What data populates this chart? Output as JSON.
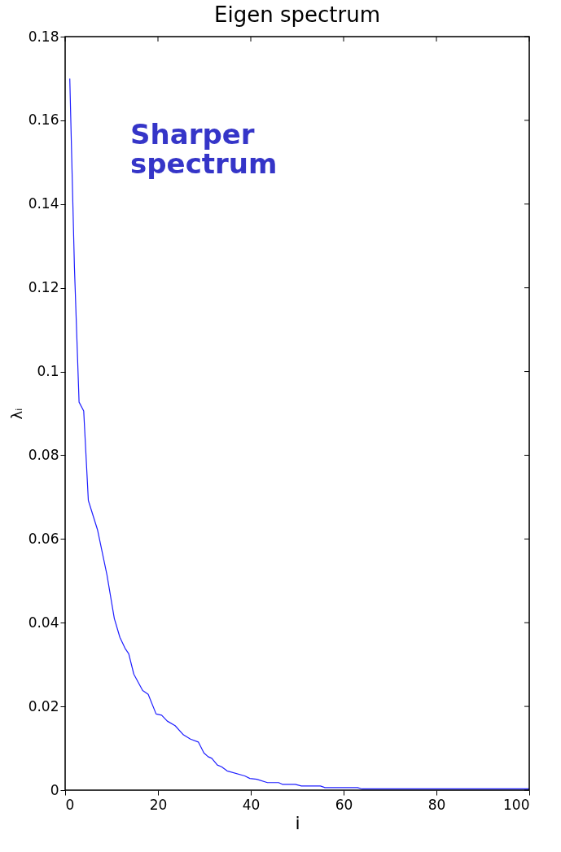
{
  "chart_data": {
    "type": "line",
    "title": "Eigen spectrum",
    "xlabel": "i",
    "ylabel": "λᵢ",
    "annotations": [
      "Sharper spectrum"
    ],
    "x": [
      1,
      2,
      3,
      4,
      5,
      7,
      9,
      10.6,
      11.8,
      12.9,
      13.7,
      14.8,
      16.7,
      17.9,
      19.6,
      20.8,
      22,
      23.7,
      25.5,
      27,
      28.7,
      29.9,
      30.8,
      31.6,
      32.8,
      33.7,
      34.9,
      38.7,
      39.8,
      41.3,
      43.6,
      46,
      46.8,
      49.6,
      50.9,
      55,
      56,
      63,
      64,
      100
    ],
    "series": [
      {
        "color": "#1f1fff",
        "values": [
          0.17,
          0.125,
          0.0927,
          0.0906,
          0.0692,
          0.0621,
          0.0515,
          0.041,
          0.0365,
          0.0339,
          0.0326,
          0.0277,
          0.0238,
          0.0229,
          0.0182,
          0.0179,
          0.0165,
          0.0154,
          0.0132,
          0.0122,
          0.0115,
          0.0089,
          0.008,
          0.0076,
          0.006,
          0.0056,
          0.0046,
          0.0034,
          0.0028,
          0.0026,
          0.0018,
          0.0018,
          0.0014,
          0.0014,
          0.001,
          0.001,
          0.0006,
          0.0006,
          0.0003,
          0.0003
        ]
      }
    ],
    "xlim": [
      0,
      100
    ],
    "xticks": [
      0,
      20,
      40,
      60,
      80,
      100
    ],
    "ylim": [
      0,
      0.18
    ],
    "yticks": [
      0,
      0.02,
      0.04,
      0.06,
      0.08,
      0.1,
      0.12,
      0.14,
      0.16,
      0.18
    ],
    "grid": false,
    "line_style": "solid",
    "marker": "none"
  }
}
